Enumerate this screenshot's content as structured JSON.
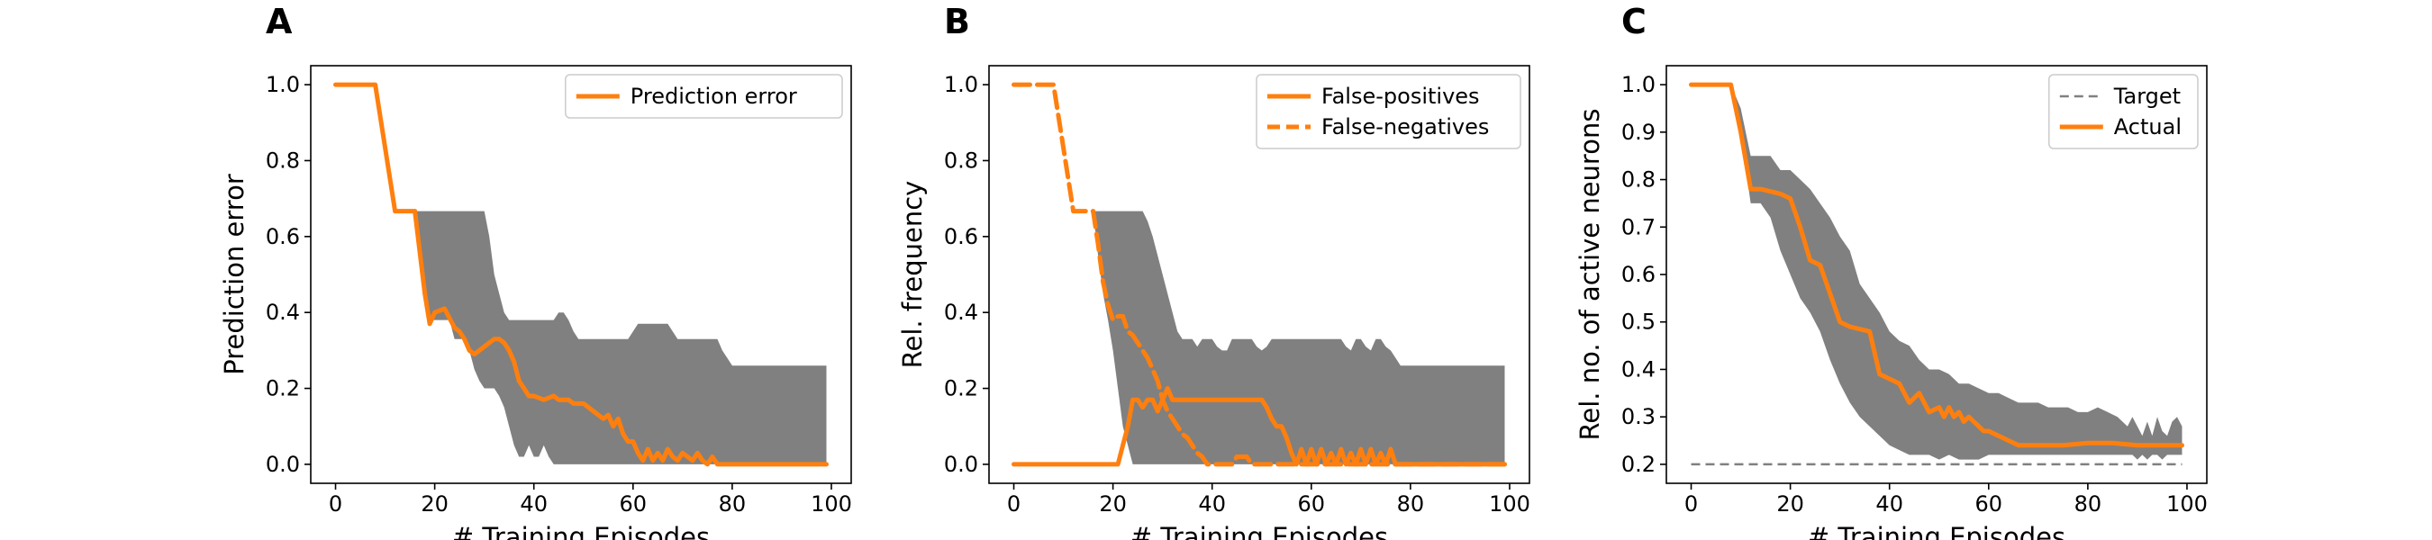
{
  "colors": {
    "line": "#ff7f0e",
    "band": "#808080",
    "target": "#808080",
    "axes": "#000000"
  },
  "chart_data": [
    {
      "panel_label": "A",
      "type": "line",
      "xlabel": "# Training Episodes",
      "ylabel": "Prediction error",
      "xlim": [
        -5,
        104
      ],
      "ylim": [
        -0.05,
        1.05
      ],
      "xticks": [
        0,
        20,
        40,
        60,
        80,
        100
      ],
      "yticks": [
        0.0,
        0.2,
        0.4,
        0.6,
        0.8,
        1.0
      ],
      "ytick_labels": [
        "0.0",
        "0.2",
        "0.4",
        "0.6",
        "0.8",
        "1.0"
      ],
      "legend_position": "upper right",
      "band": {
        "x": [
          16,
          17,
          18,
          19,
          20,
          21,
          22,
          23,
          24,
          25,
          26,
          27,
          28,
          29,
          30,
          31,
          32,
          33,
          34,
          35,
          36,
          37,
          38,
          39,
          40,
          41,
          42,
          43,
          44,
          45,
          46,
          47,
          48,
          49,
          50,
          51,
          52,
          53,
          54,
          55,
          56,
          57,
          58,
          59,
          60,
          61,
          62,
          63,
          64,
          65,
          66,
          67,
          68,
          69,
          70,
          71,
          72,
          73,
          74,
          75,
          76,
          77,
          78,
          79,
          80,
          81,
          82,
          83,
          84,
          85,
          86,
          87,
          88,
          89,
          90,
          91,
          92,
          93,
          94,
          95,
          96,
          97,
          98,
          99
        ],
        "upper": [
          0.667,
          0.667,
          0.667,
          0.667,
          0.667,
          0.667,
          0.667,
          0.667,
          0.667,
          0.667,
          0.667,
          0.667,
          0.667,
          0.667,
          0.667,
          0.6,
          0.5,
          0.45,
          0.4,
          0.38,
          0.38,
          0.38,
          0.38,
          0.38,
          0.38,
          0.38,
          0.38,
          0.38,
          0.38,
          0.4,
          0.4,
          0.38,
          0.35,
          0.33,
          0.33,
          0.33,
          0.33,
          0.33,
          0.33,
          0.33,
          0.33,
          0.33,
          0.33,
          0.33,
          0.35,
          0.37,
          0.37,
          0.37,
          0.37,
          0.37,
          0.37,
          0.37,
          0.35,
          0.33,
          0.33,
          0.33,
          0.33,
          0.33,
          0.33,
          0.33,
          0.33,
          0.33,
          0.3,
          0.28,
          0.26,
          0.26,
          0.26,
          0.26,
          0.26,
          0.26,
          0.26,
          0.26,
          0.26,
          0.26,
          0.26,
          0.26,
          0.26,
          0.26,
          0.26,
          0.26,
          0.26,
          0.26,
          0.26,
          0.26
        ],
        "lower": [
          0.667,
          0.55,
          0.45,
          0.38,
          0.38,
          0.38,
          0.38,
          0.38,
          0.33,
          0.33,
          0.33,
          0.3,
          0.25,
          0.22,
          0.2,
          0.2,
          0.2,
          0.18,
          0.15,
          0.1,
          0.05,
          0.02,
          0.02,
          0.05,
          0.02,
          0.02,
          0.05,
          0.02,
          0.0,
          0.0,
          0.0,
          0.0,
          0.0,
          0.0,
          0.0,
          0.0,
          0.0,
          0.0,
          0.0,
          0.0,
          0.0,
          0.0,
          0.0,
          0.0,
          0.0,
          0.0,
          0.0,
          0.0,
          0.0,
          0.0,
          0.0,
          0.0,
          0.0,
          0.0,
          0.0,
          0.0,
          0.0,
          0.0,
          0.0,
          0.0,
          0.0,
          0.0,
          0.0,
          0.0,
          0.0,
          0.0,
          0.0,
          0.0,
          0.0,
          0.0,
          0.0,
          0.0,
          0.0,
          0.0,
          0.0,
          0.0,
          0.0,
          0.0,
          0.0,
          0.0,
          0.0,
          0.0,
          0.0,
          0.0
        ]
      },
      "series": [
        {
          "name": "Prediction error",
          "style": "solid",
          "x": [
            0,
            8,
            12,
            16,
            18,
            19,
            20,
            22,
            24,
            25,
            26,
            27,
            28,
            30,
            32,
            33,
            34,
            35,
            36,
            37,
            38,
            39,
            40,
            42,
            44,
            45,
            46,
            47,
            48,
            50,
            52,
            54,
            55,
            56,
            57,
            58,
            59,
            60,
            61,
            62,
            63,
            64,
            65,
            66,
            67,
            68,
            69,
            70,
            71,
            72,
            73,
            74,
            75,
            76,
            77,
            78,
            80,
            85,
            90,
            95,
            99
          ],
          "y": [
            1.0,
            1.0,
            0.667,
            0.667,
            0.45,
            0.37,
            0.4,
            0.41,
            0.36,
            0.35,
            0.33,
            0.3,
            0.29,
            0.31,
            0.33,
            0.33,
            0.32,
            0.3,
            0.27,
            0.22,
            0.2,
            0.18,
            0.18,
            0.17,
            0.18,
            0.17,
            0.17,
            0.17,
            0.16,
            0.16,
            0.14,
            0.12,
            0.13,
            0.1,
            0.12,
            0.08,
            0.06,
            0.06,
            0.03,
            0.01,
            0.04,
            0.01,
            0.03,
            0.01,
            0.04,
            0.02,
            0.01,
            0.03,
            0.02,
            0.01,
            0.03,
            0.01,
            0.0,
            0.02,
            0.0,
            0.0,
            0.0,
            0.0,
            0.0,
            0.0,
            0.0
          ]
        }
      ]
    },
    {
      "panel_label": "B",
      "type": "line",
      "xlabel": "# Training Episodes",
      "ylabel": "Rel. frequency",
      "xlim": [
        -5,
        104
      ],
      "ylim": [
        -0.05,
        1.05
      ],
      "xticks": [
        0,
        20,
        40,
        60,
        80,
        100
      ],
      "yticks": [
        0.0,
        0.2,
        0.4,
        0.6,
        0.8,
        1.0
      ],
      "ytick_labels": [
        "0.0",
        "0.2",
        "0.4",
        "0.6",
        "0.8",
        "1.0"
      ],
      "legend_position": "upper right",
      "band": {
        "x": [
          16,
          17,
          18,
          19,
          20,
          21,
          22,
          23,
          24,
          25,
          26,
          27,
          28,
          29,
          30,
          31,
          32,
          33,
          34,
          35,
          36,
          37,
          38,
          39,
          40,
          41,
          42,
          43,
          44,
          45,
          46,
          47,
          48,
          49,
          50,
          51,
          52,
          53,
          54,
          55,
          56,
          57,
          58,
          59,
          60,
          61,
          62,
          63,
          64,
          65,
          66,
          67,
          68,
          69,
          70,
          71,
          72,
          73,
          74,
          75,
          76,
          77,
          78,
          79,
          80,
          81,
          82,
          83,
          84,
          85,
          86,
          87,
          88,
          89,
          90,
          91,
          92,
          93,
          94,
          95,
          96,
          97,
          98,
          99
        ],
        "upper": [
          0.667,
          0.667,
          0.667,
          0.667,
          0.667,
          0.667,
          0.667,
          0.667,
          0.667,
          0.667,
          0.667,
          0.64,
          0.6,
          0.55,
          0.5,
          0.45,
          0.4,
          0.35,
          0.33,
          0.33,
          0.33,
          0.31,
          0.33,
          0.33,
          0.33,
          0.31,
          0.3,
          0.3,
          0.33,
          0.33,
          0.33,
          0.33,
          0.33,
          0.31,
          0.3,
          0.31,
          0.33,
          0.33,
          0.33,
          0.33,
          0.33,
          0.33,
          0.33,
          0.33,
          0.33,
          0.33,
          0.33,
          0.33,
          0.33,
          0.33,
          0.33,
          0.31,
          0.3,
          0.33,
          0.33,
          0.31,
          0.3,
          0.33,
          0.33,
          0.31,
          0.3,
          0.28,
          0.26,
          0.26,
          0.26,
          0.26,
          0.26,
          0.26,
          0.26,
          0.26,
          0.26,
          0.26,
          0.26,
          0.26,
          0.26,
          0.26,
          0.26,
          0.26,
          0.26,
          0.26,
          0.26,
          0.26,
          0.26,
          0.26
        ],
        "lower": [
          0.667,
          0.55,
          0.45,
          0.38,
          0.3,
          0.2,
          0.1,
          0.05,
          0.0,
          0.0,
          0.0,
          0.0,
          0.0,
          0.0,
          0.0,
          0.0,
          0.0,
          0.0,
          0.0,
          0.0,
          0.0,
          0.0,
          0.0,
          0.0,
          0.0,
          0.0,
          0.0,
          0.0,
          0.0,
          0.0,
          0.0,
          0.0,
          0.0,
          0.0,
          0.0,
          0.0,
          0.0,
          0.0,
          0.0,
          0.0,
          0.0,
          0.0,
          0.0,
          0.0,
          0.0,
          0.0,
          0.0,
          0.0,
          0.0,
          0.0,
          0.0,
          0.0,
          0.0,
          0.0,
          0.0,
          0.0,
          0.0,
          0.0,
          0.0,
          0.0,
          0.0,
          0.0,
          0.0,
          0.0,
          0.0,
          0.0,
          0.0,
          0.0,
          0.0,
          0.0,
          0.0,
          0.0,
          0.0,
          0.0,
          0.0,
          0.0,
          0.0,
          0.0,
          0.0,
          0.0,
          0.0,
          0.0,
          0.0,
          0.0
        ]
      },
      "series": [
        {
          "name": "False-positives",
          "style": "solid",
          "x": [
            0,
            21,
            22,
            23,
            24,
            25,
            26,
            27,
            28,
            29,
            30,
            31,
            32,
            34,
            36,
            38,
            40,
            45,
            48,
            50,
            51,
            52,
            53,
            54,
            55,
            56,
            57,
            58,
            59,
            60,
            61,
            62,
            63,
            64,
            65,
            66,
            67,
            68,
            69,
            70,
            71,
            72,
            73,
            74,
            75,
            76,
            77,
            78,
            80,
            85,
            90,
            95,
            99
          ],
          "y": [
            0.0,
            0.0,
            0.05,
            0.1,
            0.17,
            0.17,
            0.15,
            0.17,
            0.17,
            0.14,
            0.17,
            0.2,
            0.17,
            0.17,
            0.17,
            0.17,
            0.17,
            0.17,
            0.17,
            0.17,
            0.15,
            0.12,
            0.1,
            0.1,
            0.07,
            0.03,
            0.0,
            0.04,
            0.0,
            0.04,
            0.0,
            0.04,
            0.0,
            0.03,
            0.0,
            0.04,
            0.0,
            0.03,
            0.0,
            0.04,
            0.0,
            0.04,
            0.0,
            0.03,
            0.0,
            0.04,
            0.0,
            0.0,
            0.0,
            0.0,
            0.0,
            0.0,
            0.0
          ]
        },
        {
          "name": "False-negatives",
          "style": "dashed",
          "x": [
            0,
            8,
            12,
            16,
            17,
            18,
            19,
            20,
            21,
            22,
            23,
            24,
            25,
            26,
            27,
            28,
            29,
            30,
            31,
            32,
            33,
            34,
            35,
            36,
            37,
            38,
            39,
            40,
            42,
            44,
            45,
            46,
            47,
            48,
            50,
            55,
            60,
            65,
            70,
            75,
            80,
            85,
            90,
            95,
            99
          ],
          "y": [
            1.0,
            1.0,
            0.667,
            0.667,
            0.58,
            0.48,
            0.42,
            0.38,
            0.39,
            0.39,
            0.35,
            0.34,
            0.32,
            0.3,
            0.28,
            0.25,
            0.22,
            0.17,
            0.14,
            0.12,
            0.1,
            0.08,
            0.07,
            0.05,
            0.03,
            0.02,
            0.0,
            0.0,
            0.0,
            0.0,
            0.02,
            0.02,
            0.02,
            0.0,
            0.0,
            0.0,
            0.0,
            0.0,
            0.0,
            0.0,
            0.0,
            0.0,
            0.0,
            0.0,
            0.0
          ]
        }
      ]
    },
    {
      "panel_label": "C",
      "type": "line",
      "xlabel": "# Training Episodes",
      "ylabel": "Rel. no. of active neurons",
      "xlim": [
        -5,
        104
      ],
      "ylim": [
        0.16,
        1.04
      ],
      "xticks": [
        0,
        20,
        40,
        60,
        80,
        100
      ],
      "yticks": [
        0.2,
        0.3,
        0.4,
        0.5,
        0.6,
        0.7,
        0.8,
        0.9,
        1.0
      ],
      "ytick_labels": [
        "0.2",
        "0.3",
        "0.4",
        "0.5",
        "0.6",
        "0.7",
        "0.8",
        "0.9",
        "1.0"
      ],
      "legend_position": "upper right",
      "band": {
        "x": [
          8,
          10,
          12,
          14,
          16,
          18,
          20,
          22,
          24,
          26,
          28,
          30,
          32,
          34,
          36,
          38,
          40,
          42,
          44,
          46,
          48,
          50,
          52,
          54,
          56,
          58,
          60,
          62,
          64,
          66,
          68,
          70,
          72,
          74,
          76,
          78,
          80,
          82,
          84,
          86,
          88,
          89,
          90,
          91,
          92,
          93,
          94,
          95,
          96,
          97,
          98,
          99
        ],
        "upper": [
          1.0,
          0.95,
          0.85,
          0.85,
          0.85,
          0.82,
          0.82,
          0.8,
          0.78,
          0.75,
          0.72,
          0.68,
          0.65,
          0.58,
          0.55,
          0.52,
          0.48,
          0.46,
          0.45,
          0.42,
          0.4,
          0.4,
          0.39,
          0.37,
          0.37,
          0.36,
          0.35,
          0.35,
          0.34,
          0.33,
          0.33,
          0.33,
          0.32,
          0.32,
          0.32,
          0.31,
          0.31,
          0.32,
          0.31,
          0.3,
          0.28,
          0.3,
          0.28,
          0.26,
          0.29,
          0.26,
          0.3,
          0.27,
          0.26,
          0.29,
          0.3,
          0.28
        ],
        "lower": [
          1.0,
          0.9,
          0.75,
          0.75,
          0.72,
          0.65,
          0.6,
          0.55,
          0.52,
          0.48,
          0.42,
          0.37,
          0.33,
          0.3,
          0.28,
          0.26,
          0.24,
          0.23,
          0.22,
          0.22,
          0.22,
          0.21,
          0.22,
          0.21,
          0.21,
          0.21,
          0.22,
          0.22,
          0.22,
          0.22,
          0.22,
          0.22,
          0.22,
          0.22,
          0.22,
          0.22,
          0.22,
          0.22,
          0.22,
          0.22,
          0.22,
          0.22,
          0.21,
          0.22,
          0.21,
          0.22,
          0.22,
          0.21,
          0.22,
          0.22,
          0.22,
          0.22
        ]
      },
      "series": [
        {
          "name": "Target",
          "style": "dashed",
          "x": [
            0,
            99
          ],
          "y": [
            0.2,
            0.2
          ]
        },
        {
          "name": "Actual",
          "style": "solid",
          "x": [
            0,
            8,
            10,
            12,
            14,
            18,
            20,
            22,
            24,
            26,
            28,
            30,
            32,
            36,
            38,
            42,
            44,
            46,
            48,
            50,
            51,
            52,
            53,
            54,
            55,
            56,
            57,
            58,
            59,
            60,
            62,
            64,
            66,
            70,
            75,
            80,
            85,
            90,
            95,
            99
          ],
          "y": [
            1.0,
            1.0,
            0.9,
            0.78,
            0.78,
            0.77,
            0.76,
            0.7,
            0.63,
            0.62,
            0.56,
            0.5,
            0.49,
            0.48,
            0.39,
            0.37,
            0.33,
            0.35,
            0.31,
            0.32,
            0.3,
            0.32,
            0.3,
            0.31,
            0.29,
            0.3,
            0.29,
            0.28,
            0.27,
            0.27,
            0.26,
            0.25,
            0.24,
            0.24,
            0.24,
            0.245,
            0.245,
            0.24,
            0.24,
            0.24
          ]
        }
      ]
    }
  ]
}
